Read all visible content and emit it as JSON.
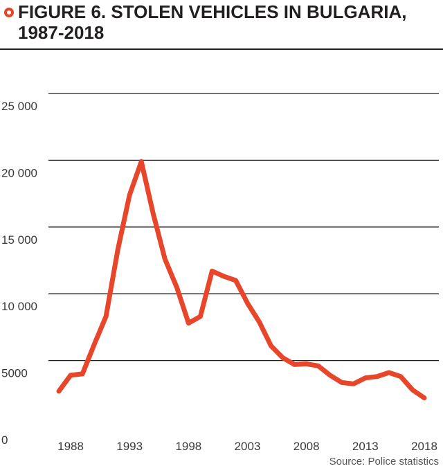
{
  "title": "FIGURE 6. STOLEN VEHICLES IN BULGARIA, 1987-2018",
  "source": "Source: Police statistics",
  "colors": {
    "line": "#e8462a",
    "text": "#231f20",
    "grid": "#231f20"
  },
  "chart_data": {
    "type": "line",
    "title": "FIGURE 6. STOLEN VEHICLES IN BULGARIA, 1987-2018",
    "xlabel": "",
    "ylabel": "",
    "xlim": [
      1987,
      2018
    ],
    "ylim": [
      0,
      25000
    ],
    "grid": true,
    "y_ticks": [
      {
        "value": 0,
        "label": "0"
      },
      {
        "value": 5000,
        "label": "5000"
      },
      {
        "value": 10000,
        "label": "10 000"
      },
      {
        "value": 15000,
        "label": "15 000"
      },
      {
        "value": 20000,
        "label": "20 000"
      },
      {
        "value": 25000,
        "label": "25 000"
      }
    ],
    "x_ticks": [
      {
        "value": 1988,
        "label": "1988"
      },
      {
        "value": 1993,
        "label": "1993"
      },
      {
        "value": 1998,
        "label": "1998"
      },
      {
        "value": 2003,
        "label": "2003"
      },
      {
        "value": 2008,
        "label": "2008"
      },
      {
        "value": 2013,
        "label": "2013"
      },
      {
        "value": 2018,
        "label": "2018"
      }
    ],
    "series": [
      {
        "color": "#e8462a",
        "x": [
          1987,
          1988,
          1989,
          1990,
          1991,
          1992,
          1993,
          1994,
          1995,
          1996,
          1997,
          1998,
          1999,
          2000,
          2001,
          2002,
          2003,
          2004,
          2005,
          2006,
          2007,
          2008,
          2009,
          2010,
          2011,
          2012,
          2013,
          2014,
          2015,
          2016,
          2017,
          2018
        ],
        "values": [
          2700,
          3900,
          4000,
          6200,
          8300,
          13300,
          17400,
          19900,
          16000,
          12600,
          10500,
          7800,
          8300,
          11700,
          11300,
          11000,
          9300,
          7900,
          6100,
          5200,
          4700,
          4750,
          4600,
          3900,
          3350,
          3250,
          3700,
          3800,
          4100,
          3800,
          2800,
          2200
        ]
      }
    ]
  }
}
